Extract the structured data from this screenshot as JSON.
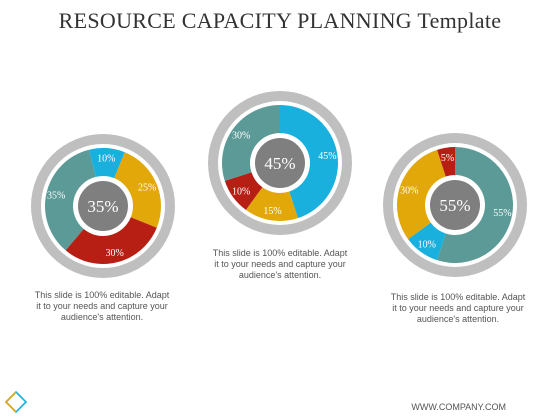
{
  "title": "RESOURCE CAPACITY PLANNING Template",
  "footer": "WWW.COMPANY.COM",
  "colors": {
    "teal": "#5b9a96",
    "cyan": "#1ab0dd",
    "yellow": "#e2a709",
    "red": "#b71e14",
    "ring": "#bfbfbf",
    "center": "#7f7f7f"
  },
  "chart_data": [
    {
      "type": "pie",
      "center_label": "35%",
      "segments": [
        {
          "value": 35,
          "label": "35%",
          "color": "teal"
        },
        {
          "value": 10,
          "label": "10%",
          "color": "cyan"
        },
        {
          "value": 25,
          "label": "25%",
          "color": "yellow"
        },
        {
          "value": 30,
          "label": "30%",
          "color": "red"
        }
      ],
      "caption": "This slide is 100% editable. Adapt it to your needs and capture your audience's attention."
    },
    {
      "type": "pie",
      "center_label": "45%",
      "segments": [
        {
          "value": 45,
          "label": "45%",
          "color": "cyan"
        },
        {
          "value": 15,
          "label": "15%",
          "color": "yellow"
        },
        {
          "value": 10,
          "label": "10%",
          "color": "red"
        },
        {
          "value": 30,
          "label": "30%",
          "color": "teal"
        }
      ],
      "caption": "This slide is 100% editable. Adapt it to your needs and capture your audience's attention."
    },
    {
      "type": "pie",
      "center_label": "55%",
      "segments": [
        {
          "value": 55,
          "label": "55%",
          "color": "teal"
        },
        {
          "value": 10,
          "label": "10%",
          "color": "cyan"
        },
        {
          "value": 30,
          "label": "30%",
          "color": "yellow"
        },
        {
          "value": 5,
          "label": "5%",
          "color": "red"
        }
      ],
      "caption": "This slide is 100% editable. Adapt it to your needs and capture your audience's attention."
    }
  ]
}
